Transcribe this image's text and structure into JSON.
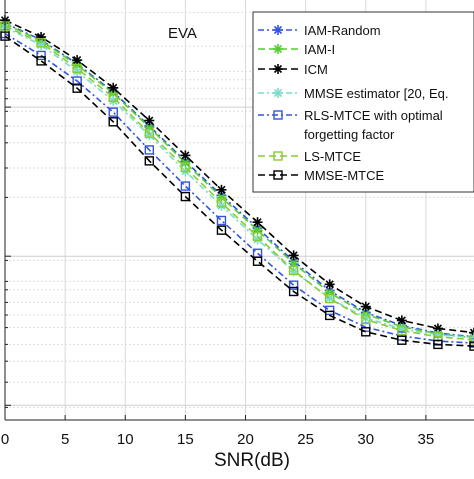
{
  "chart_data": {
    "type": "line",
    "annotation": "EVA",
    "xlabel": "SNR(dB)",
    "ylabel": "",
    "xlim": [
      0,
      39
    ],
    "x_ticks": [
      0,
      5,
      10,
      15,
      20,
      25,
      30,
      35
    ],
    "x_tick_labels": [
      "0",
      "5",
      "10",
      "15",
      "20",
      "25",
      "30",
      "35"
    ],
    "y_scale": "log",
    "y_unlabeled_range": [
      0,
      1
    ],
    "grid": true,
    "legend_position": "top-right",
    "x": [
      0,
      3,
      6,
      9,
      12,
      15,
      18,
      21,
      24,
      27,
      30,
      33,
      36,
      39
    ],
    "series": [
      {
        "name": "IAM-Random",
        "color": "#3355dd",
        "dash": "6,3,2,3",
        "marker": "star",
        "values": [
          0.945,
          0.905,
          0.848,
          0.781,
          0.7,
          0.616,
          0.535,
          0.457,
          0.378,
          0.308,
          0.256,
          0.225,
          0.207,
          0.198
        ]
      },
      {
        "name": "IAM-I",
        "color": "#55cc33",
        "dash": "7,4",
        "marker": "star",
        "values": [
          0.943,
          0.903,
          0.845,
          0.778,
          0.697,
          0.612,
          0.53,
          0.452,
          0.373,
          0.303,
          0.252,
          0.222,
          0.205,
          0.196
        ]
      },
      {
        "name": "ICM",
        "color": "#000000",
        "dash": "7,4",
        "marker": "star",
        "values": [
          0.952,
          0.912,
          0.857,
          0.791,
          0.713,
          0.63,
          0.548,
          0.471,
          0.392,
          0.323,
          0.27,
          0.237,
          0.218,
          0.208
        ]
      },
      {
        "name": "MMSE estimator [20, Eq.",
        "color": "#77ddcc",
        "dash": "6,3,2,3",
        "marker": "star",
        "values": [
          0.935,
          0.893,
          0.83,
          0.76,
          0.678,
          0.592,
          0.51,
          0.43,
          0.354,
          0.29,
          0.243,
          0.217,
          0.203,
          0.196
        ]
      },
      {
        "name": "RLS-MTCE with optimal",
        "color": "#3355dd",
        "dash": "6,3,2,3",
        "marker": "square",
        "values": [
          0.92,
          0.868,
          0.807,
          0.733,
          0.643,
          0.557,
          0.475,
          0.397,
          0.321,
          0.261,
          0.221,
          0.2,
          0.188,
          0.183
        ]
      },
      {
        "name": "LS-MTCE",
        "color": "#88cc33",
        "dash": "7,4",
        "marker": "square",
        "values": [
          0.938,
          0.898,
          0.837,
          0.768,
          0.683,
          0.601,
          0.517,
          0.437,
          0.356,
          0.289,
          0.239,
          0.213,
          0.198,
          0.191
        ]
      },
      {
        "name": "MMSE-MTCE",
        "color": "#000000",
        "dash": "7,4",
        "marker": "square",
        "values": [
          0.914,
          0.855,
          0.79,
          0.71,
          0.617,
          0.532,
          0.452,
          0.378,
          0.306,
          0.249,
          0.21,
          0.19,
          0.18,
          0.176
        ]
      }
    ],
    "legend_extra_line": "forgetting factor"
  }
}
